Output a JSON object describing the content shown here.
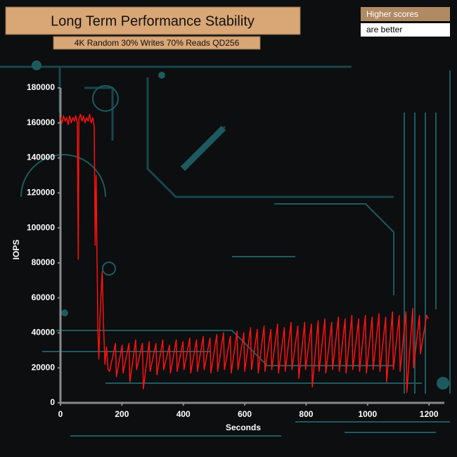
{
  "chart_data": {
    "type": "line",
    "title": "Long Term Performance Stability",
    "subtitle": "4K Random 30% Writes 70% Reads QD256",
    "annotations": [
      "Higher scores",
      "are better"
    ],
    "x_label": "Seconds",
    "y_label": "IOPS",
    "x": [
      0,
      5,
      10,
      15,
      20,
      25,
      30,
      35,
      40,
      45,
      50,
      55,
      58,
      60,
      65,
      70,
      75,
      80,
      85,
      90,
      95,
      100,
      105,
      110,
      113,
      116,
      119,
      122,
      125,
      128,
      132,
      136,
      140,
      145,
      150,
      155,
      160,
      179,
      182,
      201,
      204,
      223,
      226,
      245,
      248,
      267,
      270,
      289,
      292,
      311,
      314,
      333,
      336,
      355,
      358,
      377,
      380,
      399,
      402,
      421,
      424,
      443,
      446,
      465,
      468,
      487,
      490,
      509,
      512,
      531,
      534,
      553,
      556,
      575,
      578,
      597,
      600,
      619,
      622,
      641,
      644,
      663,
      666,
      685,
      688,
      707,
      710,
      729,
      732,
      751,
      754,
      773,
      776,
      795,
      798,
      817,
      820,
      839,
      842,
      861,
      864,
      883,
      886,
      905,
      908,
      927,
      930,
      949,
      952,
      971,
      974,
      993,
      996,
      1015,
      1018,
      1037,
      1040,
      1059,
      1062,
      1081,
      1084,
      1103,
      1106,
      1125,
      1128,
      1147,
      1150,
      1169,
      1172,
      1185,
      1192,
      1198
    ],
    "color": "#ff1010",
    "values": [
      163000,
      160000,
      164000,
      161000,
      163000,
      159000,
      164000,
      160000,
      163000,
      161000,
      164000,
      160000,
      82000,
      162000,
      165000,
      161000,
      164000,
      160000,
      163000,
      161000,
      165000,
      160000,
      163000,
      158000,
      90000,
      130000,
      83000,
      40000,
      25000,
      45000,
      62000,
      75000,
      45000,
      22000,
      32000,
      19000,
      18000,
      34000,
      15000,
      33000,
      17000,
      34000,
      12000,
      36000,
      19000,
      34000,
      8000,
      35000,
      18000,
      34000,
      16000,
      36000,
      19000,
      33000,
      17000,
      36000,
      18000,
      35000,
      19000,
      37000,
      17000,
      36000,
      18000,
      38000,
      19000,
      37000,
      17000,
      39000,
      18000,
      40000,
      19000,
      38000,
      17000,
      41000,
      19000,
      40000,
      18000,
      43000,
      19000,
      42000,
      17000,
      44000,
      18000,
      42000,
      19000,
      45000,
      17000,
      43000,
      18000,
      46000,
      19000,
      44000,
      14000,
      46000,
      19000,
      45000,
      9000,
      47000,
      18000,
      48000,
      17000,
      46000,
      19000,
      49000,
      18000,
      48000,
      17000,
      50000,
      19000,
      48000,
      18000,
      50000,
      17000,
      49000,
      19000,
      51000,
      18000,
      49000,
      12000,
      52000,
      19000,
      50000,
      18000,
      52000,
      6000,
      54000,
      20000,
      50000,
      28000,
      42000,
      50000,
      48000
    ],
    "xlim": [
      0,
      1250
    ],
    "ylim": [
      0,
      180000
    ],
    "xticks": [
      0,
      200,
      400,
      600,
      800,
      1000,
      1200
    ],
    "yticks": [
      0,
      20000,
      40000,
      60000,
      80000,
      100000,
      120000,
      140000,
      160000,
      180000
    ]
  }
}
